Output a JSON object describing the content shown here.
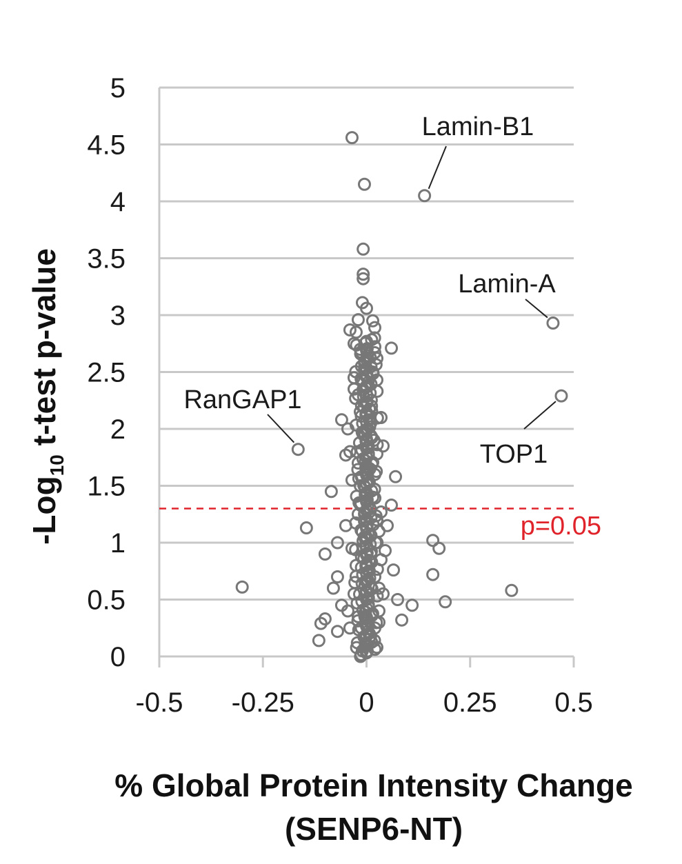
{
  "chart_data": {
    "type": "scatter",
    "title": "",
    "xlabel_line1": "% Global Protein Intensity Change",
    "xlabel_line2": "(SENP6-NT)",
    "ylabel_prefix": "-Log",
    "ylabel_sub": "10",
    "ylabel_suffix": " t-test p-value",
    "xlim": [
      -0.5,
      0.5
    ],
    "ylim": [
      0,
      5
    ],
    "xticks": [
      "-0.5",
      "-0.25",
      "0",
      "0.25",
      "0.5"
    ],
    "xtick_values": [
      -0.5,
      -0.25,
      0,
      0.25,
      0.5
    ],
    "yticks": [
      "0",
      "0.5",
      "1",
      "1.5",
      "2",
      "2.5",
      "3",
      "3.5",
      "4",
      "4.5",
      "5"
    ],
    "ytick_values": [
      0,
      0.5,
      1,
      1.5,
      2,
      2.5,
      3,
      3.5,
      4,
      4.5,
      5
    ],
    "grid": "horizontal",
    "threshold": {
      "y": 1.3,
      "label": "p=0.05",
      "color": "#e0232a"
    },
    "marker_color": "#777777",
    "annotations": [
      {
        "label": "Lamin-B1",
        "x": 0.14,
        "y": 4.05
      },
      {
        "label": "Lamin-A",
        "x": 0.45,
        "y": 2.93
      },
      {
        "label": "TOP1",
        "x": 0.47,
        "y": 2.29
      },
      {
        "label": "RanGAP1",
        "x": -0.165,
        "y": 1.82
      }
    ],
    "points": [
      [
        -0.035,
        4.56
      ],
      [
        -0.005,
        4.15
      ],
      [
        0.14,
        4.05
      ],
      [
        -0.008,
        3.58
      ],
      [
        -0.008,
        3.36
      ],
      [
        -0.008,
        3.32
      ],
      [
        -0.01,
        3.11
      ],
      [
        0.0,
        3.06
      ],
      [
        0.45,
        2.93
      ],
      [
        -0.02,
        2.96
      ],
      [
        0.015,
        2.95
      ],
      [
        -0.04,
        2.87
      ],
      [
        -0.025,
        2.85
      ],
      [
        0.02,
        2.89
      ],
      [
        0.06,
        2.71
      ],
      [
        -0.03,
        2.75
      ],
      [
        -0.015,
        2.7
      ],
      [
        0.02,
        2.67
      ],
      [
        0.025,
        2.62
      ],
      [
        0.47,
        2.29
      ],
      [
        0.025,
        2.43
      ],
      [
        -0.03,
        2.45
      ],
      [
        -0.02,
        2.3
      ],
      [
        -0.165,
        1.82
      ],
      [
        -0.06,
        2.08
      ],
      [
        -0.045,
        2.0
      ],
      [
        0.04,
        1.85
      ],
      [
        0.025,
        1.78
      ],
      [
        -0.05,
        1.77
      ],
      [
        0.07,
        1.58
      ],
      [
        -0.085,
        1.45
      ],
      [
        -0.035,
        1.55
      ],
      [
        0.06,
        1.33
      ],
      [
        0.035,
        1.27
      ],
      [
        -0.145,
        1.13
      ],
      [
        -0.05,
        1.15
      ],
      [
        0.03,
        1.1
      ],
      [
        0.16,
        1.02
      ],
      [
        0.175,
        0.95
      ],
      [
        -0.07,
        1.0
      ],
      [
        -0.1,
        0.9
      ],
      [
        0.01,
        0.9
      ],
      [
        0.045,
        0.93
      ],
      [
        0.065,
        0.76
      ],
      [
        0.16,
        0.72
      ],
      [
        -0.07,
        0.7
      ],
      [
        -0.3,
        0.61
      ],
      [
        0.35,
        0.58
      ],
      [
        -0.08,
        0.6
      ],
      [
        0.03,
        0.6
      ],
      [
        0.075,
        0.5
      ],
      [
        0.11,
        0.45
      ],
      [
        0.19,
        0.48
      ],
      [
        -0.06,
        0.45
      ],
      [
        -0.1,
        0.33
      ],
      [
        -0.11,
        0.29
      ],
      [
        0.085,
        0.32
      ],
      [
        -0.07,
        0.22
      ],
      [
        -0.04,
        0.25
      ],
      [
        -0.115,
        0.14
      ],
      [
        0.025,
        0.08
      ],
      [
        0.01,
        0.18
      ],
      [
        -0.01,
        0.05
      ],
      [
        0.02,
        0.25
      ],
      [
        -0.02,
        0.35
      ],
      [
        0.03,
        0.4
      ],
      [
        -0.03,
        0.55
      ],
      [
        0.02,
        0.7
      ],
      [
        -0.025,
        0.8
      ],
      [
        0.035,
        0.85
      ],
      [
        -0.035,
        0.95
      ],
      [
        0.025,
        1.2
      ],
      [
        -0.02,
        1.25
      ],
      [
        0.015,
        1.4
      ],
      [
        -0.015,
        1.5
      ],
      [
        0.02,
        1.6
      ],
      [
        -0.02,
        1.7
      ],
      [
        0.018,
        1.9
      ],
      [
        -0.015,
        2.15
      ],
      [
        0.012,
        2.2
      ],
      [
        -0.012,
        2.55
      ],
      [
        0.01,
        2.05
      ],
      [
        -0.008,
        1.95
      ],
      [
        0.008,
        1.65
      ],
      [
        -0.005,
        1.05
      ],
      [
        0.005,
        0.75
      ],
      [
        -0.004,
        0.35
      ],
      [
        0.006,
        0.15
      ],
      [
        -0.018,
        1.35
      ],
      [
        0.022,
        1.0
      ],
      [
        -0.028,
        0.65
      ],
      [
        0.03,
        0.3
      ],
      [
        -0.022,
        0.12
      ],
      [
        0.04,
        0.55
      ],
      [
        -0.045,
        0.4
      ],
      [
        0.05,
        1.15
      ],
      [
        -0.04,
        1.8
      ],
      [
        0.035,
        2.1
      ],
      [
        -0.03,
        2.35
      ],
      [
        0.015,
        2.5
      ]
    ]
  }
}
